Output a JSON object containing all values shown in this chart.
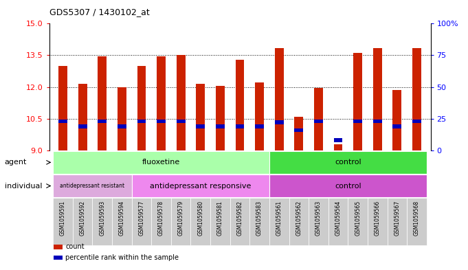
{
  "title": "GDS5307 / 1430102_at",
  "samples": [
    "GSM1059591",
    "GSM1059592",
    "GSM1059593",
    "GSM1059594",
    "GSM1059577",
    "GSM1059578",
    "GSM1059579",
    "GSM1059580",
    "GSM1059581",
    "GSM1059582",
    "GSM1059583",
    "GSM1059561",
    "GSM1059562",
    "GSM1059563",
    "GSM1059564",
    "GSM1059565",
    "GSM1059566",
    "GSM1059567",
    "GSM1059568"
  ],
  "count_values": [
    13.0,
    12.15,
    13.45,
    12.0,
    13.0,
    13.45,
    13.5,
    12.15,
    12.05,
    13.3,
    12.2,
    13.85,
    10.6,
    11.95,
    9.3,
    13.6,
    13.85,
    11.85,
    13.85
  ],
  "percentile_values": [
    23,
    19,
    23,
    19,
    23,
    23,
    23,
    19,
    19,
    19,
    19,
    22,
    16,
    23,
    8,
    23,
    23,
    19,
    23
  ],
  "y_min": 9,
  "y_max": 15,
  "y_ticks": [
    9,
    10.5,
    12,
    13.5,
    15
  ],
  "y_right_ticks": [
    0,
    25,
    50,
    75,
    100
  ],
  "agent_groups": [
    {
      "label": "fluoxetine",
      "start": 0,
      "end": 11,
      "color": "#AAFFAA"
    },
    {
      "label": "control",
      "start": 11,
      "end": 19,
      "color": "#44DD44"
    }
  ],
  "individual_groups": [
    {
      "label": "antidepressant resistant",
      "start": 0,
      "end": 4,
      "color": "#DDAADD"
    },
    {
      "label": "antidepressant responsive",
      "start": 4,
      "end": 11,
      "color": "#EE88EE"
    },
    {
      "label": "control",
      "start": 11,
      "end": 19,
      "color": "#CC55CC"
    }
  ],
  "bar_color": "#CC2200",
  "percentile_color": "#0000BB",
  "bar_width": 0.45,
  "legend_items": [
    {
      "label": "count",
      "color": "#CC2200"
    },
    {
      "label": "percentile rank within the sample",
      "color": "#0000BB"
    }
  ],
  "tick_bg_color": "#CCCCCC",
  "left_labels_color": "#444444"
}
